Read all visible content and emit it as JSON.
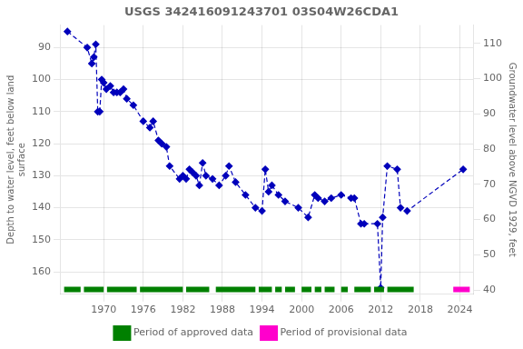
{
  "chart_data": {
    "type": "line",
    "title": "USGS 342416091243701 03S04W26CDA1",
    "ylabel": "Depth to water level, feet below land\nsurface",
    "y2label": "Groundwater level above NGVD 1929, feet",
    "xlim": [
      1963.5,
      2026
    ],
    "xticks": [
      1970,
      1976,
      1982,
      1988,
      1994,
      2000,
      2006,
      2012,
      2018,
      2024
    ],
    "ylim": [
      167,
      83
    ],
    "yticks": [
      90,
      100,
      110,
      120,
      130,
      140,
      150,
      160
    ],
    "y2lim": [
      38.8,
      115.2
    ],
    "y2ticks": [
      40,
      50,
      60,
      70,
      80,
      90,
      100,
      110
    ],
    "grid": true,
    "legend": "bottom",
    "x": [
      1964.5,
      1967.5,
      1968.2,
      1968.5,
      1968.8,
      1969.1,
      1969.4,
      1969.7,
      1970.0,
      1970.4,
      1971.0,
      1971.5,
      1972.0,
      1972.5,
      1973.0,
      1973.5,
      1974.5,
      1976.0,
      1977.0,
      1977.5,
      1978.3,
      1978.8,
      1979.5,
      1980.0,
      1981.5,
      1982.0,
      1982.5,
      1983.0,
      1983.5,
      1984.0,
      1984.5,
      1985.0,
      1985.5,
      1986.5,
      1987.5,
      1988.5,
      1989.0,
      1990.0,
      1991.5,
      1993.0,
      1994.0,
      1994.5,
      1995.0,
      1995.5,
      1996.5,
      1997.5,
      1999.5,
      2001.0,
      2002.0,
      2002.5,
      2003.5,
      2004.5,
      2006.0,
      2007.5,
      2008.0,
      2009.0,
      2009.5,
      2011.5,
      2012.0,
      2012.3,
      2013.0,
      2014.5,
      2015.0,
      2016.0,
      2024.5
    ],
    "series": [
      {
        "color": "#0000bb",
        "marker": "diamond",
        "line_style": "dashed",
        "values": [
          85,
          90,
          95,
          93,
          89,
          110,
          110,
          100,
          101,
          103,
          102,
          104,
          104,
          104,
          103,
          106,
          108,
          113,
          115,
          113,
          119,
          120,
          121,
          127,
          131,
          130,
          131,
          128,
          129,
          130,
          133,
          126,
          130,
          131,
          133,
          130,
          127,
          132,
          136,
          140,
          141,
          128,
          135,
          133,
          136,
          138,
          140,
          143,
          136,
          137,
          138,
          137,
          136,
          137,
          137,
          145,
          145,
          145,
          165,
          143,
          127,
          128,
          140,
          141,
          128
        ]
      },
      {
        "name": "Period of approved data",
        "color": "#008000",
        "type": "period",
        "periods": [
          [
            1964,
            1966.5
          ],
          [
            1967,
            1970
          ],
          [
            1970.5,
            1975
          ],
          [
            1975.5,
            1982
          ],
          [
            1982.5,
            1986
          ],
          [
            1987,
            1993
          ],
          [
            1993.5,
            1995.5
          ],
          [
            1996,
            1997
          ],
          [
            1997.5,
            1999
          ],
          [
            2000,
            2001.5
          ],
          [
            2002,
            2003
          ],
          [
            2003.5,
            2005
          ],
          [
            2006,
            2007
          ],
          [
            2008,
            2010.5
          ],
          [
            2011,
            2012.5
          ],
          [
            2013,
            2017
          ]
        ]
      },
      {
        "name": "Period of provisional data",
        "color": "#ff00cc",
        "type": "period",
        "periods": [
          [
            2023,
            2025.5
          ]
        ]
      }
    ]
  }
}
